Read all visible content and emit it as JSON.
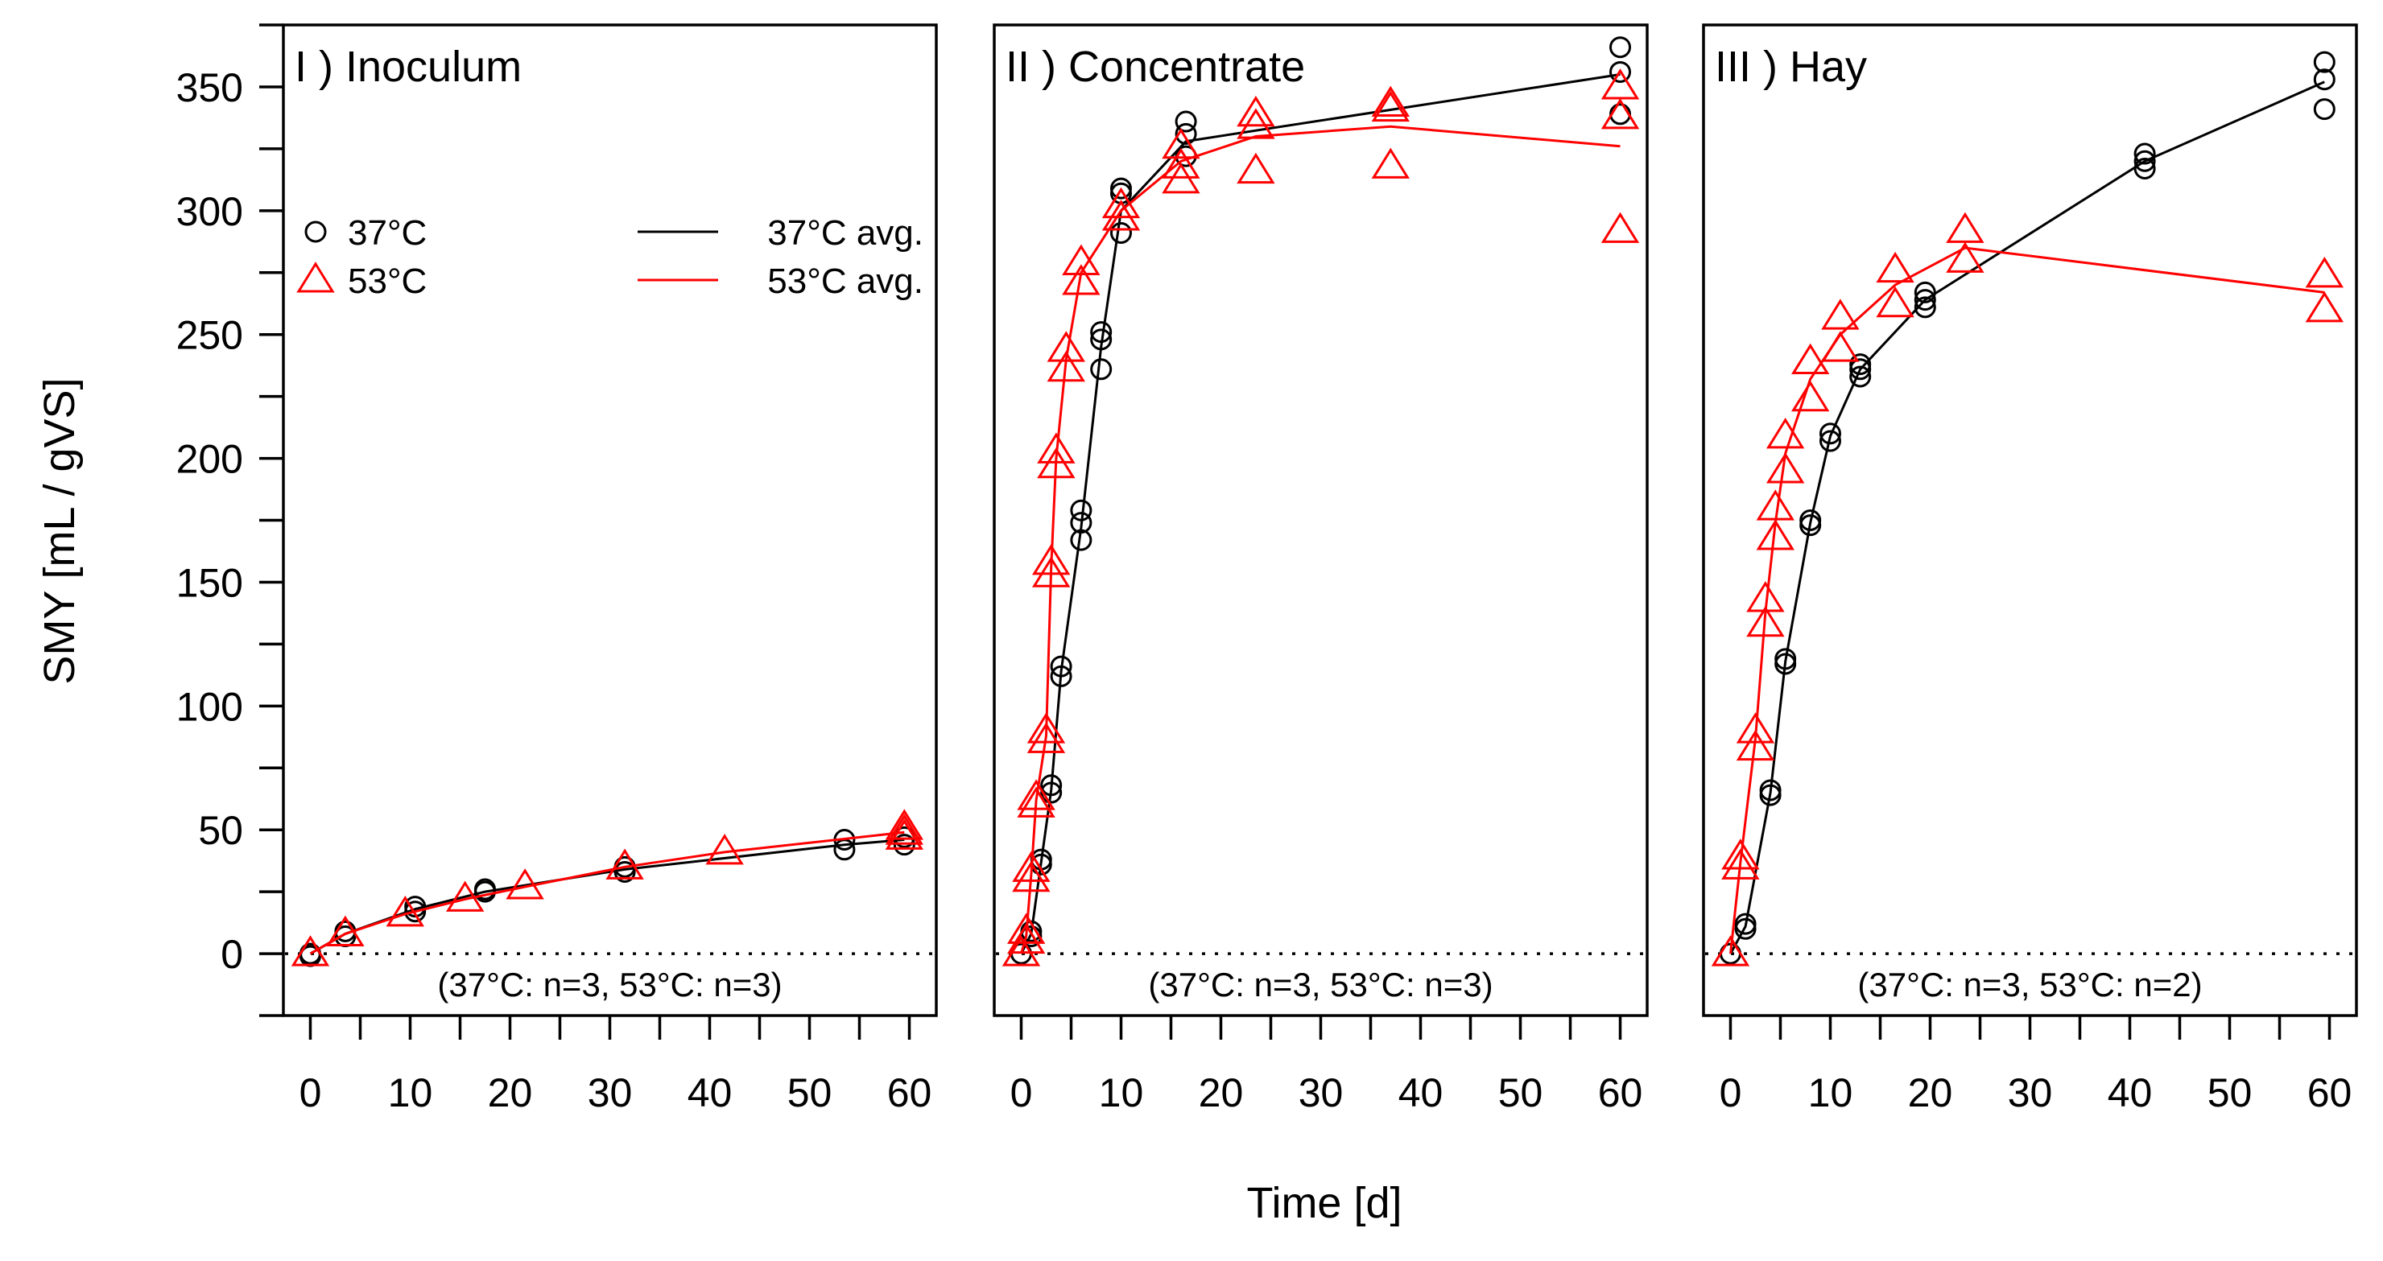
{
  "chart_data": {
    "type": "line",
    "ylabel": "SMY [mL / gVS]",
    "xlabel": "Time [d]",
    "ylim": [
      -25,
      375
    ],
    "xlim": [
      -2.7,
      62.7
    ],
    "y_ticks": [
      0,
      50,
      100,
      150,
      200,
      250,
      300,
      350
    ],
    "x_ticks": [
      0,
      10,
      20,
      30,
      40,
      50,
      60
    ],
    "colors": {
      "c37": "#000000",
      "c53": "#ff0000"
    },
    "legend": {
      "points": [
        {
          "label": "37°C",
          "marker": "circle",
          "color": "#000000"
        },
        {
          "label": "53°C",
          "marker": "triangle",
          "color": "#ff0000"
        }
      ],
      "lines": [
        {
          "label": "37°C avg.",
          "color": "#000000"
        },
        {
          "label": "53°C avg.",
          "color": "#ff0000"
        }
      ]
    },
    "panels": [
      {
        "title": "I ) Inoculum",
        "note": "(37°C: n=3, 53°C: n=3)",
        "series": [
          {
            "name": "37°C",
            "avg": [
              [
                0,
                0
              ],
              [
                3.5,
                8
              ],
              [
                10.5,
                18
              ],
              [
                17.5,
                25
              ],
              [
                31.5,
                34
              ],
              [
                53.5,
                44
              ],
              [
                59.5,
                46
              ]
            ],
            "points": [
              [
                0,
                0
              ],
              [
                0,
                -1
              ],
              [
                3.5,
                7
              ],
              [
                3.5,
                9
              ],
              [
                10.5,
                17
              ],
              [
                10.5,
                19
              ],
              [
                17.5,
                25
              ],
              [
                17.5,
                26
              ],
              [
                31.5,
                33
              ],
              [
                31.5,
                35
              ],
              [
                53.5,
                42
              ],
              [
                53.5,
                46
              ],
              [
                59.5,
                44
              ],
              [
                59.5,
                47
              ]
            ]
          },
          {
            "name": "53°C",
            "avg": [
              [
                0,
                0
              ],
              [
                3.5,
                8
              ],
              [
                9.5,
                16
              ],
              [
                15.5,
                22
              ],
              [
                21.5,
                27
              ],
              [
                31.5,
                35
              ],
              [
                41.5,
                41
              ],
              [
                59.5,
                49
              ]
            ],
            "points": [
              [
                0,
                0
              ],
              [
                3.5,
                8
              ],
              [
                9.5,
                16
              ],
              [
                15.5,
                22
              ],
              [
                21.5,
                27
              ],
              [
                31.5,
                35
              ],
              [
                41.5,
                41
              ],
              [
                59.5,
                47
              ],
              [
                59.5,
                49
              ],
              [
                59.5,
                51
              ]
            ]
          }
        ]
      },
      {
        "title": "II ) Concentrate",
        "note": "(37°C: n=3, 53°C: n=3)",
        "series": [
          {
            "name": "37°C",
            "avg": [
              [
                0,
                0
              ],
              [
                1,
                8
              ],
              [
                2,
                37
              ],
              [
                3,
                66
              ],
              [
                4,
                114
              ],
              [
                6,
                172
              ],
              [
                8,
                245
              ],
              [
                10,
                300
              ],
              [
                16.5,
                328
              ],
              [
                60,
                355
              ]
            ],
            "points": [
              [
                0,
                0
              ],
              [
                1,
                7
              ],
              [
                1,
                9
              ],
              [
                2,
                36
              ],
              [
                2,
                38
              ],
              [
                3,
                65
              ],
              [
                3,
                68
              ],
              [
                4,
                112
              ],
              [
                4,
                116
              ],
              [
                6,
                167
              ],
              [
                6,
                174
              ],
              [
                6,
                179
              ],
              [
                8,
                236
              ],
              [
                8,
                248
              ],
              [
                8,
                251
              ],
              [
                10,
                291
              ],
              [
                10,
                307
              ],
              [
                10,
                309
              ],
              [
                16.5,
                322
              ],
              [
                16.5,
                331
              ],
              [
                16.5,
                336
              ],
              [
                60,
                339
              ],
              [
                60,
                356
              ],
              [
                60,
                366
              ]
            ]
          },
          {
            "name": "53°C",
            "avg": [
              [
                0,
                0
              ],
              [
                0.5,
                7
              ],
              [
                1,
                32
              ],
              [
                1.5,
                62
              ],
              [
                2.5,
                88
              ],
              [
                3,
                156
              ],
              [
                3.5,
                200
              ],
              [
                4.5,
                240
              ],
              [
                6,
                275
              ],
              [
                10,
                300
              ],
              [
                16,
                320
              ],
              [
                23.5,
                330
              ],
              [
                37,
                334
              ],
              [
                60,
                326
              ]
            ],
            "points": [
              [
                0,
                0
              ],
              [
                0.5,
                5
              ],
              [
                0.5,
                9
              ],
              [
                1,
                30
              ],
              [
                1,
                34
              ],
              [
                1.5,
                60
              ],
              [
                1.5,
                63
              ],
              [
                2.5,
                86
              ],
              [
                2.5,
                90
              ],
              [
                3,
                153
              ],
              [
                3,
                158
              ],
              [
                3.5,
                197
              ],
              [
                3.5,
                203
              ],
              [
                4.5,
                236
              ],
              [
                4.5,
                244
              ],
              [
                6,
                271
              ],
              [
                6,
                279
              ],
              [
                10,
                297
              ],
              [
                10,
                302
              ],
              [
                16,
                312
              ],
              [
                16,
                318
              ],
              [
                16,
                326
              ],
              [
                23.5,
                316
              ],
              [
                23.5,
                334
              ],
              [
                23.5,
                339
              ],
              [
                37,
                318
              ],
              [
                37,
                341
              ],
              [
                37,
                343
              ],
              [
                60,
                292
              ],
              [
                60,
                338
              ],
              [
                60,
                350
              ]
            ]
          }
        ]
      },
      {
        "title": "III ) Hay",
        "note": "(37°C: n=3, 53°C: n=2)",
        "series": [
          {
            "name": "37°C",
            "avg": [
              [
                0,
                0
              ],
              [
                1.5,
                11
              ],
              [
                4,
                65
              ],
              [
                5.5,
                118
              ],
              [
                8,
                174
              ],
              [
                10,
                209
              ],
              [
                13,
                236
              ],
              [
                19.5,
                264
              ],
              [
                41.5,
                320
              ],
              [
                59.5,
                352
              ]
            ],
            "points": [
              [
                0,
                0
              ],
              [
                1.5,
                10
              ],
              [
                1.5,
                12
              ],
              [
                4,
                64
              ],
              [
                4,
                66
              ],
              [
                5.5,
                117
              ],
              [
                5.5,
                119
              ],
              [
                8,
                173
              ],
              [
                8,
                175
              ],
              [
                10,
                207
              ],
              [
                10,
                210
              ],
              [
                13,
                233
              ],
              [
                13,
                236
              ],
              [
                13,
                238
              ],
              [
                19.5,
                261
              ],
              [
                19.5,
                264
              ],
              [
                19.5,
                267
              ],
              [
                41.5,
                317
              ],
              [
                41.5,
                320
              ],
              [
                41.5,
                323
              ],
              [
                59.5,
                341
              ],
              [
                59.5,
                353
              ],
              [
                59.5,
                360
              ]
            ]
          },
          {
            "name": "53°C",
            "avg": [
              [
                0,
                0
              ],
              [
                1,
                37
              ],
              [
                2.5,
                87
              ],
              [
                3.5,
                138
              ],
              [
                4.5,
                174
              ],
              [
                5.5,
                202
              ],
              [
                8,
                232
              ],
              [
                11,
                250
              ],
              [
                16.5,
                270
              ],
              [
                23.5,
                285
              ],
              [
                59.5,
                267
              ]
            ],
            "points": [
              [
                0,
                0
              ],
              [
                1,
                35
              ],
              [
                1,
                39
              ],
              [
                2.5,
                83
              ],
              [
                2.5,
                90
              ],
              [
                3.5,
                133
              ],
              [
                3.5,
                143
              ],
              [
                4.5,
                168
              ],
              [
                4.5,
                180
              ],
              [
                5.5,
                195
              ],
              [
                5.5,
                209
              ],
              [
                8,
                224
              ],
              [
                8,
                239
              ],
              [
                11,
                244
              ],
              [
                11,
                257
              ],
              [
                16.5,
                262
              ],
              [
                16.5,
                276
              ],
              [
                23.5,
                280
              ],
              [
                23.5,
                292
              ],
              [
                59.5,
                260
              ],
              [
                59.5,
                274
              ]
            ]
          }
        ]
      }
    ]
  }
}
